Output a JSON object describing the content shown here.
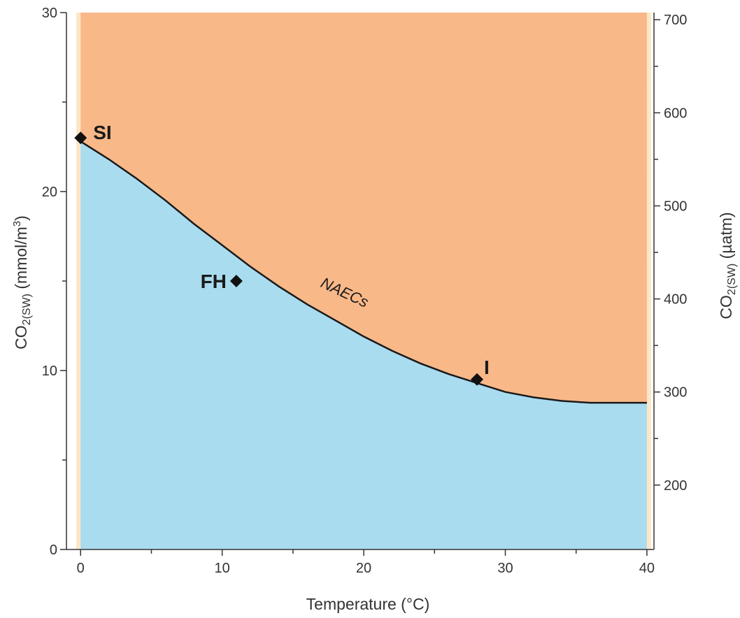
{
  "chart_data": {
    "type": "area",
    "xlabel": "Temperature (°C)",
    "ylabel_left": {
      "main": "CO",
      "sub": "2(SW)",
      "tail": " (mmol/m",
      "sup": "3",
      "end": ")"
    },
    "ylabel_right": {
      "main": "CO",
      "sub": "2(SW)",
      "tail": " (µatm)"
    },
    "xlim": [
      -1,
      40.5
    ],
    "ylim": [
      0,
      30
    ],
    "right_ylim_ticks": {
      "major": [
        200,
        300,
        400,
        500,
        600,
        700
      ],
      "minor": [
        250,
        350,
        450,
        550,
        650
      ]
    },
    "x_ticks": [
      0,
      10,
      20,
      30,
      40
    ],
    "y_ticks": [
      0,
      10,
      20,
      30
    ],
    "right_axis_mapping": {
      "left_value_at_200": 3.6,
      "left_value_per_100": 5.2
    },
    "curve": {
      "name": "NAECs",
      "x": [
        0,
        2,
        4,
        6,
        8,
        10,
        12,
        14,
        16,
        18,
        20,
        22,
        24,
        26,
        28,
        30,
        32,
        34,
        36,
        38,
        40
      ],
      "y": [
        22.8,
        21.8,
        20.7,
        19.5,
        18.2,
        17.0,
        15.8,
        14.7,
        13.7,
        12.8,
        11.9,
        11.1,
        10.4,
        9.8,
        9.3,
        8.8,
        8.5,
        8.3,
        8.2,
        8.2,
        8.2
      ]
    },
    "points": [
      {
        "label": "SI",
        "x": 0,
        "y": 23.0
      },
      {
        "label": "FH",
        "x": 11,
        "y": 15.0
      },
      {
        "label": "I",
        "x": 28,
        "y": 9.5
      }
    ],
    "colors": {
      "above_curve": "#f8b888",
      "below_curve": "#aadcf0",
      "margin_band": "#fce6c8",
      "curve": "#1a1a1a",
      "marker": "#111111"
    }
  }
}
